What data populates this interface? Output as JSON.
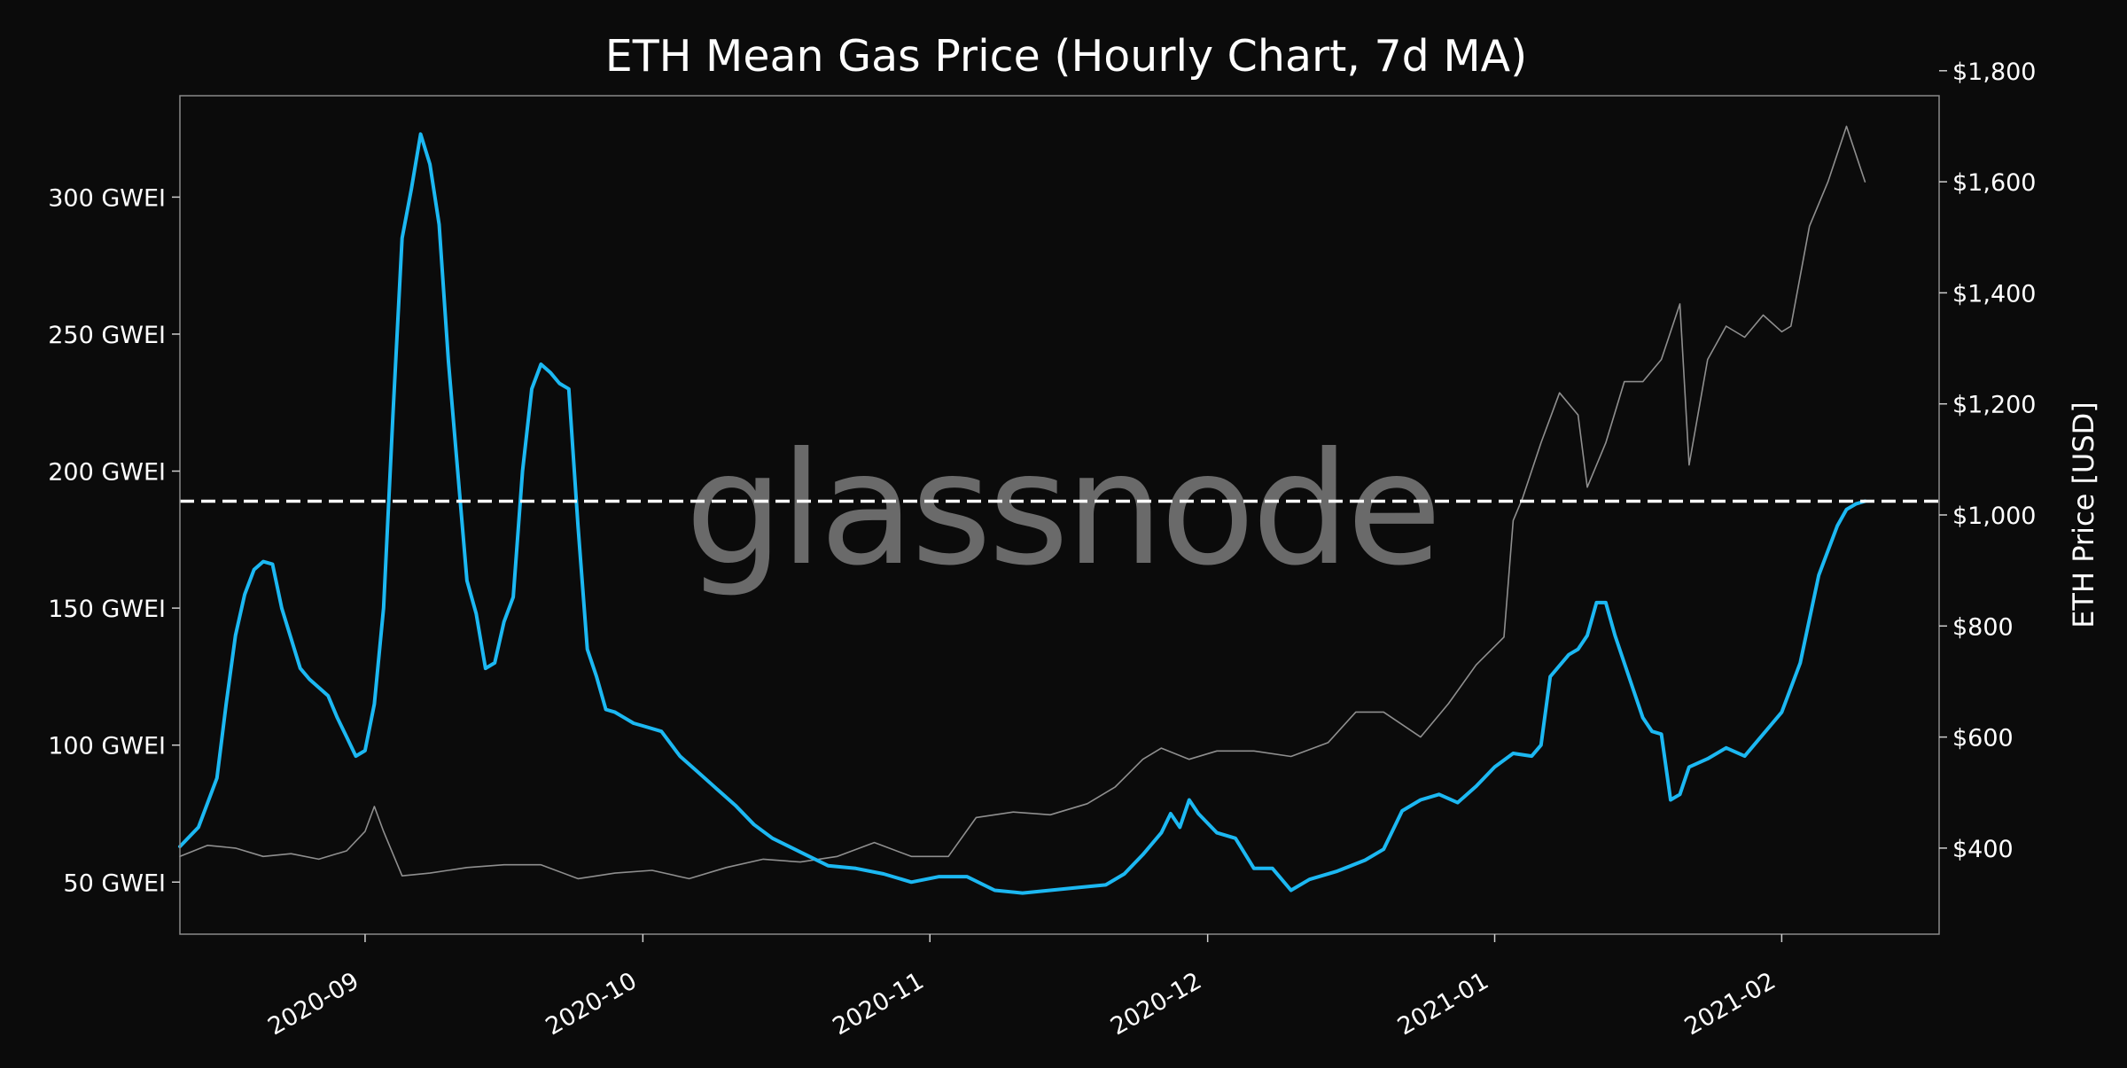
{
  "chart_data": {
    "type": "line",
    "title": "ETH Mean Gas Price (Hourly Chart, 7d MA)",
    "watermark": "glassnode",
    "background": "#0b0b0b",
    "grid": false,
    "legend": "none",
    "x_axis": {
      "range": [
        "2020-08-12",
        "2021-02-18"
      ],
      "ticks": [
        {
          "date": "2020-09-01",
          "label": "2020-09"
        },
        {
          "date": "2020-10-01",
          "label": "2020-10"
        },
        {
          "date": "2020-11-01",
          "label": "2020-11"
        },
        {
          "date": "2020-12-01",
          "label": "2020-12"
        },
        {
          "date": "2021-01-01",
          "label": "2021-01"
        },
        {
          "date": "2021-02-01",
          "label": "2021-02"
        }
      ]
    },
    "y_left": {
      "range": [
        31,
        337
      ],
      "unit": "GWEI",
      "ticks": [
        {
          "value": 50,
          "label": "50 GWEI"
        },
        {
          "value": 100,
          "label": "100 GWEI"
        },
        {
          "value": 150,
          "label": "150 GWEI"
        },
        {
          "value": 200,
          "label": "200 GWEI"
        },
        {
          "value": 250,
          "label": "250 GWEI"
        },
        {
          "value": 300,
          "label": "300 GWEI"
        }
      ]
    },
    "y_right": {
      "label": "ETH Price [USD]",
      "range": [
        245,
        1755
      ],
      "ticks": [
        {
          "value": 400,
          "label": "$400"
        },
        {
          "value": 600,
          "label": "$600"
        },
        {
          "value": 800,
          "label": "$800"
        },
        {
          "value": 1000,
          "label": "$1,000"
        },
        {
          "value": 1200,
          "label": "$1,200"
        },
        {
          "value": 1400,
          "label": "$1,400"
        },
        {
          "value": 1600,
          "label": "$1,600"
        },
        {
          "value": 1800,
          "label": "$1,800"
        }
      ]
    },
    "reference_line": {
      "value": 189,
      "axis": "left",
      "style": "dashed",
      "color": "#ffffff"
    },
    "series": [
      {
        "axis": "left",
        "color": "#1cb8f2",
        "x": [
          "2020-08-12",
          "2020-08-14",
          "2020-08-16",
          "2020-08-17",
          "2020-08-18",
          "2020-08-19",
          "2020-08-20",
          "2020-08-21",
          "2020-08-22",
          "2020-08-23",
          "2020-08-25",
          "2020-08-26",
          "2020-08-28",
          "2020-08-29",
          "2020-08-30",
          "2020-08-31",
          "2020-09-01",
          "2020-09-02",
          "2020-09-03",
          "2020-09-04",
          "2020-09-05",
          "2020-09-06",
          "2020-09-07",
          "2020-09-08",
          "2020-09-09",
          "2020-09-10",
          "2020-09-12",
          "2020-09-13",
          "2020-09-14",
          "2020-09-15",
          "2020-09-16",
          "2020-09-17",
          "2020-09-18",
          "2020-09-19",
          "2020-09-20",
          "2020-09-21",
          "2020-09-22",
          "2020-09-23",
          "2020-09-24",
          "2020-09-25",
          "2020-09-26",
          "2020-09-27",
          "2020-09-28",
          "2020-09-29",
          "2020-09-30",
          "2020-10-01",
          "2020-10-03",
          "2020-10-05",
          "2020-10-07",
          "2020-10-09",
          "2020-10-11",
          "2020-10-13",
          "2020-10-15",
          "2020-10-18",
          "2020-10-21",
          "2020-10-24",
          "2020-10-27",
          "2020-10-30",
          "2020-11-02",
          "2020-11-05",
          "2020-11-08",
          "2020-11-11",
          "2020-11-14",
          "2020-11-17",
          "2020-11-20",
          "2020-11-22",
          "2020-11-24",
          "2020-11-26",
          "2020-11-27",
          "2020-11-28",
          "2020-11-29",
          "2020-11-30",
          "2020-12-02",
          "2020-12-04",
          "2020-12-06",
          "2020-12-08",
          "2020-12-10",
          "2020-12-12",
          "2020-12-15",
          "2020-12-18",
          "2020-12-20",
          "2020-12-22",
          "2020-12-24",
          "2020-12-26",
          "2020-12-28",
          "2020-12-30",
          "2021-01-01",
          "2021-01-03",
          "2021-01-05",
          "2021-01-06",
          "2021-01-07",
          "2021-01-09",
          "2021-01-10",
          "2021-01-11",
          "2021-01-12",
          "2021-01-13",
          "2021-01-14",
          "2021-01-16",
          "2021-01-17",
          "2021-01-18",
          "2021-01-19",
          "2021-01-20",
          "2021-01-21",
          "2021-01-22",
          "2021-01-24",
          "2021-01-26",
          "2021-01-28",
          "2021-01-30",
          "2021-02-01",
          "2021-02-03",
          "2021-02-05",
          "2021-02-07",
          "2021-02-08",
          "2021-02-09",
          "2021-02-10"
        ],
        "y": [
          63,
          70,
          88,
          115,
          140,
          155,
          164,
          167,
          166,
          150,
          128,
          124,
          118,
          110,
          103,
          96,
          98,
          115,
          150,
          220,
          285,
          303,
          323,
          312,
          290,
          240,
          160,
          148,
          128,
          130,
          145,
          154,
          200,
          230,
          239,
          236,
          232,
          230,
          180,
          135,
          125,
          113,
          112,
          110,
          108,
          107,
          105,
          96,
          90,
          84,
          78,
          71,
          66,
          61,
          56,
          55,
          53,
          50,
          52,
          52,
          47,
          46,
          47,
          48,
          49,
          53,
          60,
          68,
          75,
          70,
          80,
          75,
          68,
          66,
          55,
          55,
          47,
          51,
          54,
          58,
          62,
          76,
          80,
          82,
          79,
          85,
          92,
          97,
          96,
          100,
          125,
          133,
          135,
          140,
          152,
          152,
          140,
          120,
          110,
          105,
          104,
          80,
          82,
          92,
          95,
          99,
          96,
          104,
          112,
          130,
          162,
          180,
          186,
          188,
          189
        ]
      },
      {
        "axis": "right",
        "color": "#8f8f8f",
        "x": [
          "2020-08-12",
          "2020-08-15",
          "2020-08-18",
          "2020-08-21",
          "2020-08-24",
          "2020-08-27",
          "2020-08-30",
          "2020-09-01",
          "2020-09-02",
          "2020-09-03",
          "2020-09-05",
          "2020-09-08",
          "2020-09-12",
          "2020-09-16",
          "2020-09-20",
          "2020-09-24",
          "2020-09-28",
          "2020-10-02",
          "2020-10-06",
          "2020-10-10",
          "2020-10-14",
          "2020-10-18",
          "2020-10-22",
          "2020-10-26",
          "2020-10-30",
          "2020-11-03",
          "2020-11-06",
          "2020-11-10",
          "2020-11-14",
          "2020-11-18",
          "2020-11-21",
          "2020-11-24",
          "2020-11-26",
          "2020-11-29",
          "2020-12-02",
          "2020-12-06",
          "2020-12-10",
          "2020-12-14",
          "2020-12-17",
          "2020-12-20",
          "2020-12-24",
          "2020-12-27",
          "2020-12-30",
          "2021-01-02",
          "2021-01-03",
          "2021-01-04",
          "2021-01-06",
          "2021-01-08",
          "2021-01-10",
          "2021-01-11",
          "2021-01-13",
          "2021-01-15",
          "2021-01-17",
          "2021-01-19",
          "2021-01-21",
          "2021-01-22",
          "2021-01-24",
          "2021-01-26",
          "2021-01-28",
          "2021-01-30",
          "2021-02-01",
          "2021-02-02",
          "2021-02-04",
          "2021-02-06",
          "2021-02-08",
          "2021-02-10"
        ],
        "y": [
          385,
          405,
          400,
          385,
          390,
          380,
          395,
          430,
          475,
          430,
          350,
          355,
          365,
          370,
          370,
          345,
          355,
          360,
          345,
          365,
          380,
          375,
          385,
          410,
          385,
          385,
          455,
          465,
          460,
          480,
          510,
          560,
          580,
          560,
          575,
          575,
          565,
          590,
          645,
          645,
          600,
          660,
          730,
          780,
          990,
          1030,
          1130,
          1220,
          1180,
          1050,
          1130,
          1240,
          1240,
          1280,
          1380,
          1090,
          1280,
          1340,
          1320,
          1360,
          1330,
          1340,
          1520,
          1600,
          1700,
          1600
        ]
      }
    ]
  }
}
